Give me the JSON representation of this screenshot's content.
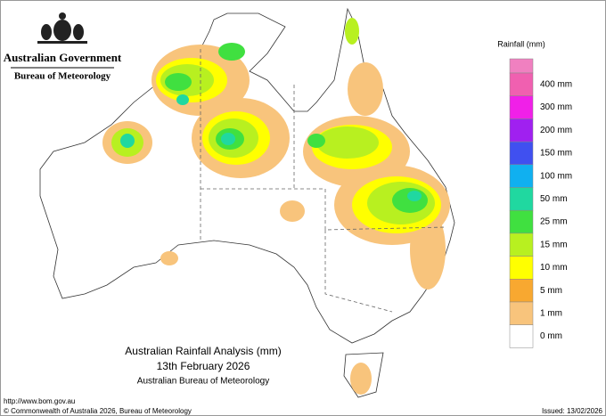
{
  "header": {
    "government": "Australian Government",
    "bureau": "Bureau of Meteorology"
  },
  "legend": {
    "title": "Rainfall (mm)",
    "items": [
      {
        "label": "400 mm",
        "color": "#f060b0"
      },
      {
        "label": "300 mm",
        "color": "#f020e8"
      },
      {
        "label": "200 mm",
        "color": "#a020f0"
      },
      {
        "label": "150 mm",
        "color": "#4050f0"
      },
      {
        "label": "100 mm",
        "color": "#10b0f0"
      },
      {
        "label": "50 mm",
        "color": "#20d8a0"
      },
      {
        "label": "25 mm",
        "color": "#40e040"
      },
      {
        "label": "15 mm",
        "color": "#b8f020"
      },
      {
        "label": "10 mm",
        "color": "#ffff00"
      },
      {
        "label": "5 mm",
        "color": "#f8a830"
      },
      {
        "label": "1 mm",
        "color": "#f8c47c"
      },
      {
        "label": "0 mm",
        "color": "#ffffff"
      }
    ]
  },
  "map_title": {
    "line1": "Australian Rainfall Analysis (mm)",
    "line2": "13th February 2026",
    "line3": "Australian Bureau of Meteorology"
  },
  "footer": {
    "url": "http://www.bom.gov.au",
    "copyright": "© Commonwealth of Australia 2026, Bureau of Meteorology",
    "issued": "Issued: 13/02/2026"
  }
}
